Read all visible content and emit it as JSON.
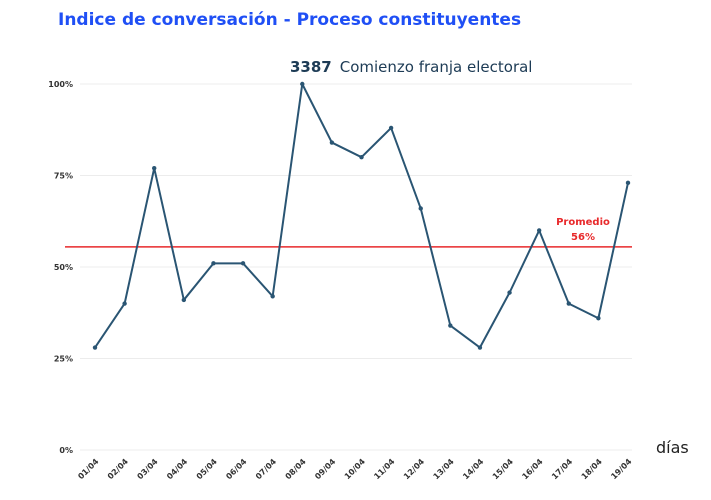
{
  "chart_data": {
    "type": "line",
    "title": "Indice de conversación - Proceso constituyentes",
    "xlabel": "días",
    "ylabel": "",
    "categories": [
      "01/04",
      "02/04",
      "03/04",
      "04/04",
      "05/04",
      "06/04",
      "07/04",
      "08/04",
      "09/04",
      "10/04",
      "11/04",
      "12/04",
      "13/04",
      "14/04",
      "15/04",
      "16/04",
      "17/04",
      "18/04",
      "19/04"
    ],
    "series": [
      {
        "name": "Indice de conversación",
        "values": [
          28,
          40,
          77,
          41,
          51,
          51,
          42,
          100,
          84,
          80,
          88,
          66,
          34,
          28,
          43,
          60,
          40,
          36,
          73
        ],
        "color": "#2a5573"
      }
    ],
    "ylim": [
      0,
      100
    ],
    "yticks": [
      "0%",
      "25%",
      "50%",
      "75%",
      "100%"
    ],
    "grid": true,
    "average": {
      "label": "Promedio",
      "value_label": "56%",
      "value": 55.5,
      "color": "#e8292b"
    },
    "annotation": {
      "number": "3387",
      "text": "Comienzo franja electoral"
    }
  }
}
